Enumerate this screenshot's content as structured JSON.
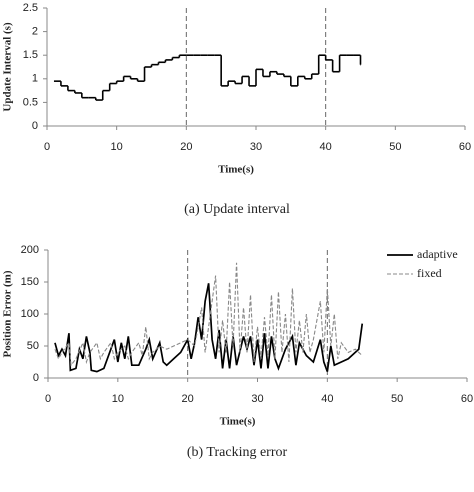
{
  "chart_data": [
    {
      "type": "line",
      "step": true,
      "ylabel": "Update Interval (s)",
      "xlabel": "Time(s)",
      "caption": "(a)  Update interval",
      "xlim": [
        0,
        60
      ],
      "xticks": [
        0,
        10,
        20,
        30,
        40,
        50,
        60
      ],
      "ylim": [
        0,
        2.5
      ],
      "yticks": [
        0,
        0.5,
        1,
        1.5,
        2,
        2.5
      ],
      "vlines": [
        20,
        40
      ],
      "series": [
        {
          "color": "#000000",
          "x": [
            1,
            2,
            3,
            4,
            5,
            6,
            7,
            8,
            9,
            10,
            11,
            12,
            13,
            14,
            15,
            16,
            17,
            18,
            19,
            20,
            21,
            22,
            23,
            24,
            25,
            26,
            27,
            28,
            29,
            30,
            31,
            32,
            33,
            34,
            35,
            36,
            37,
            38,
            39,
            40,
            41,
            42,
            43,
            44,
            45
          ],
          "values": [
            0.95,
            0.85,
            0.75,
            0.7,
            0.6,
            0.6,
            0.55,
            0.75,
            0.9,
            0.95,
            1.05,
            1.0,
            0.95,
            1.25,
            1.3,
            1.35,
            1.4,
            1.45,
            1.5,
            1.5,
            1.5,
            1.5,
            1.5,
            1.5,
            0.85,
            0.95,
            0.9,
            1.05,
            0.85,
            1.2,
            1.05,
            1.15,
            1.1,
            1.05,
            0.85,
            1.05,
            1.0,
            1.1,
            1.5,
            1.4,
            1.15,
            1.5,
            1.5,
            1.5,
            1.3
          ]
        }
      ]
    },
    {
      "type": "line",
      "ylabel": "Position Error (m)",
      "xlabel": "Time(s)",
      "caption": "(b)  Tracking error",
      "xlim": [
        0,
        60
      ],
      "xticks": [
        0,
        10,
        20,
        30,
        40,
        50,
        60
      ],
      "ylim": [
        0,
        200
      ],
      "yticks": [
        0,
        50,
        100,
        150,
        200
      ],
      "vlines": [
        20,
        40
      ],
      "legend": "top-right",
      "series": [
        {
          "name": "adaptive",
          "color": "#000000",
          "dash": false,
          "x": [
            1,
            1.5,
            2,
            2.5,
            3,
            3.2,
            4,
            4.5,
            5,
            5.5,
            6,
            6.2,
            7,
            8,
            9,
            9.5,
            10,
            10.5,
            11,
            11.5,
            12,
            13,
            14,
            14.5,
            15,
            16,
            16.5,
            17,
            18,
            19,
            20,
            20.5,
            21,
            21.5,
            22,
            22.5,
            23,
            23.5,
            24,
            24.5,
            25,
            25.5,
            26,
            26.5,
            27,
            28,
            28.5,
            29,
            29.5,
            30,
            30.5,
            31,
            31.5,
            32,
            32.5,
            33,
            34,
            35,
            35.5,
            36,
            37,
            38,
            39,
            39.5,
            40,
            40.5,
            41,
            42,
            43,
            44,
            44.5,
            45
          ],
          "values": [
            55,
            35,
            45,
            35,
            70,
            12,
            15,
            45,
            30,
            65,
            40,
            12,
            10,
            15,
            45,
            60,
            25,
            55,
            30,
            65,
            20,
            20,
            45,
            60,
            30,
            55,
            25,
            20,
            30,
            40,
            60,
            30,
            55,
            95,
            60,
            120,
            148,
            60,
            30,
            75,
            15,
            60,
            15,
            65,
            20,
            65,
            45,
            65,
            20,
            60,
            15,
            70,
            15,
            65,
            30,
            15,
            45,
            65,
            20,
            55,
            35,
            25,
            60,
            25,
            10,
            50,
            20,
            25,
            30,
            40,
            45,
            85
          ]
        },
        {
          "name": "fixed",
          "color": "#888888",
          "dash": true,
          "x": [
            1,
            1.5,
            2,
            3,
            3.3,
            4,
            5,
            5.5,
            6,
            7,
            7.5,
            8,
            9,
            9.5,
            10,
            11,
            11.5,
            12,
            13,
            13.5,
            14,
            14.5,
            15,
            16,
            17,
            18,
            19,
            20,
            21,
            22,
            22.5,
            23,
            24,
            24.5,
            25,
            25.5,
            26,
            26.5,
            27,
            27.5,
            28,
            28.5,
            29,
            29.5,
            30,
            30.5,
            31,
            31.5,
            32,
            32.5,
            33,
            33.5,
            34,
            34.5,
            35,
            35.5,
            36,
            36.5,
            37,
            37.5,
            38,
            39,
            39.5,
            40,
            40.5,
            41,
            41.5,
            42,
            43,
            44,
            45
          ],
          "values": [
            45,
            30,
            40,
            55,
            20,
            30,
            55,
            25,
            40,
            55,
            30,
            40,
            55,
            30,
            40,
            50,
            30,
            40,
            55,
            35,
            80,
            30,
            40,
            50,
            45,
            50,
            55,
            60,
            50,
            110,
            40,
            80,
            160,
            40,
            90,
            40,
            150,
            50,
            180,
            40,
            110,
            40,
            130,
            25,
            80,
            30,
            95,
            35,
            130,
            30,
            135,
            40,
            100,
            25,
            140,
            40,
            90,
            40,
            100,
            40,
            60,
            120,
            40,
            140,
            50,
            100,
            30,
            55,
            40,
            45,
            35
          ]
        }
      ]
    }
  ]
}
